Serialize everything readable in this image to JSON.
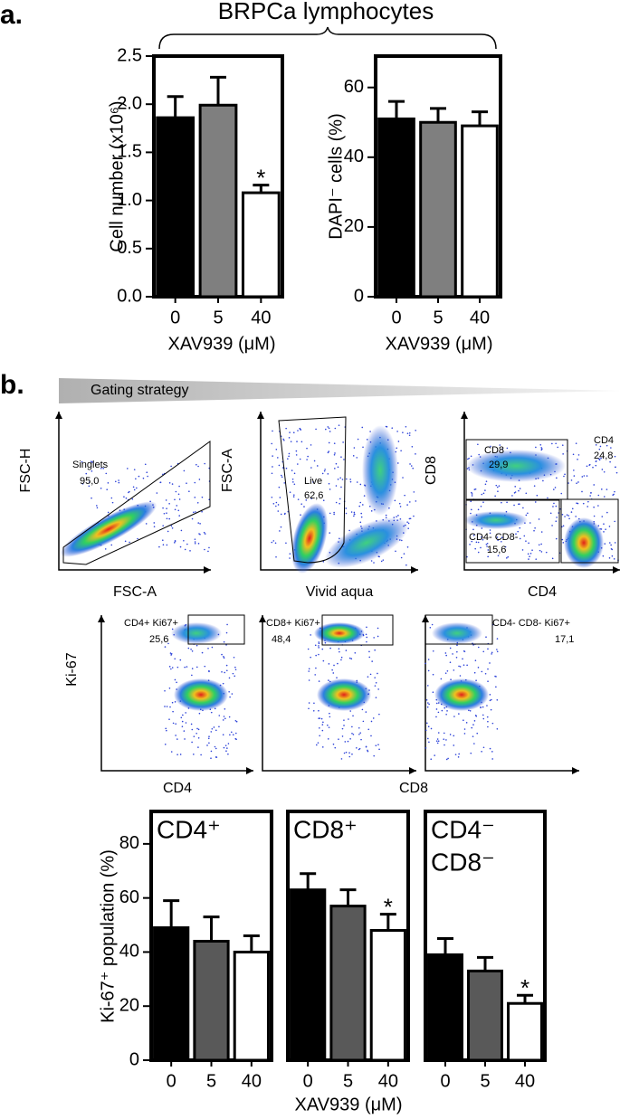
{
  "panel_a": {
    "label": "a.",
    "group_title": "BRPCa lymphocytes"
  },
  "chart_data": [
    {
      "type": "bar",
      "ylabel": "Cell number (x10⁶)",
      "xlabel": "XAV939 (μM)",
      "categories": [
        "0",
        "5",
        "40"
      ],
      "values": [
        1.86,
        1.99,
        1.08
      ],
      "errors": [
        0.22,
        0.29,
        0.08
      ],
      "colors": [
        "#000000",
        "#7f7f7f",
        "#ffffff"
      ],
      "ylim": [
        0,
        2.5
      ],
      "yticks": [
        {
          "value": 0,
          "label": "0.0"
        },
        {
          "value": 0.5,
          "label": "0.5"
        },
        {
          "value": 1,
          "label": "1.0"
        },
        {
          "value": 1.5,
          "label": "1.5"
        },
        {
          "value": 2,
          "label": "2.0"
        },
        {
          "value": 2.5,
          "label": "2.5"
        }
      ],
      "annotations": [
        {
          "category": "40",
          "text": "*"
        }
      ]
    },
    {
      "type": "bar",
      "ylabel": "DAPI⁻ cells (%)",
      "xlabel": "XAV939 (μM)",
      "categories": [
        "0",
        "5",
        "40"
      ],
      "values": [
        51,
        50,
        49
      ],
      "errors": [
        5,
        4,
        4
      ],
      "colors": [
        "#000000",
        "#7f7f7f",
        "#ffffff"
      ],
      "ylim": [
        0,
        69
      ],
      "yticks": [
        0,
        20,
        40,
        60
      ]
    },
    {
      "type": "bar",
      "title": "CD4⁺",
      "ylabel": "Ki-67⁺ population (%)",
      "categories": [
        "0",
        "5",
        "40"
      ],
      "values": [
        49,
        44,
        40
      ],
      "errors": [
        10,
        9,
        6
      ],
      "colors": [
        "#000000",
        "#595959",
        "#ffffff"
      ],
      "ylim": [
        0,
        92
      ],
      "yticks": [
        0,
        20,
        40,
        60,
        80
      ]
    },
    {
      "type": "bar",
      "title": "CD8⁺",
      "xlabel": "XAV939 (μM)",
      "categories": [
        "0",
        "5",
        "40"
      ],
      "values": [
        63,
        57,
        48
      ],
      "errors": [
        6,
        6,
        6
      ],
      "colors": [
        "#000000",
        "#595959",
        "#ffffff"
      ],
      "ylim": [
        0,
        92
      ],
      "annotations": [
        {
          "category": "40",
          "text": "*"
        }
      ]
    },
    {
      "type": "bar",
      "title": [
        "CD4⁻",
        "CD8⁻"
      ],
      "categories": [
        "0",
        "5",
        "40"
      ],
      "values": [
        39,
        33,
        21
      ],
      "errors": [
        6,
        5,
        3
      ],
      "colors": [
        "#000000",
        "#595959",
        "#ffffff"
      ],
      "ylim": [
        0,
        92
      ],
      "annotations": [
        {
          "category": "40",
          "text": "*"
        }
      ]
    }
  ],
  "panel_b": {
    "label": "b.",
    "gating_title": "Gating strategy",
    "row1": [
      {
        "x_label": "FSC-A",
        "y_label": "FSC-H",
        "gates": [
          {
            "name": "Singlets",
            "percent": "95,0"
          }
        ]
      },
      {
        "x_label": "Vivid aqua",
        "y_label": "FSC-A",
        "gates": [
          {
            "name": "Live",
            "percent": "62,6"
          }
        ]
      },
      {
        "x_label": "CD4",
        "y_label": "CD8",
        "gates": [
          {
            "name": "CD8",
            "percent": "29,9"
          },
          {
            "name": "CD4",
            "percent": "24,8"
          },
          {
            "name": "CD4- CD8-",
            "percent": "15,6"
          }
        ]
      }
    ],
    "row2": {
      "y_label": "Ki-67",
      "x_labels": [
        "CD4",
        "CD8"
      ],
      "gates": [
        {
          "name": "CD4+ Ki67+",
          "percent": "25,6"
        },
        {
          "name": "CD8+ Ki67+",
          "percent": "48,4"
        },
        {
          "name": "CD4- CD8- Ki67+",
          "percent": "17,1"
        }
      ]
    }
  }
}
